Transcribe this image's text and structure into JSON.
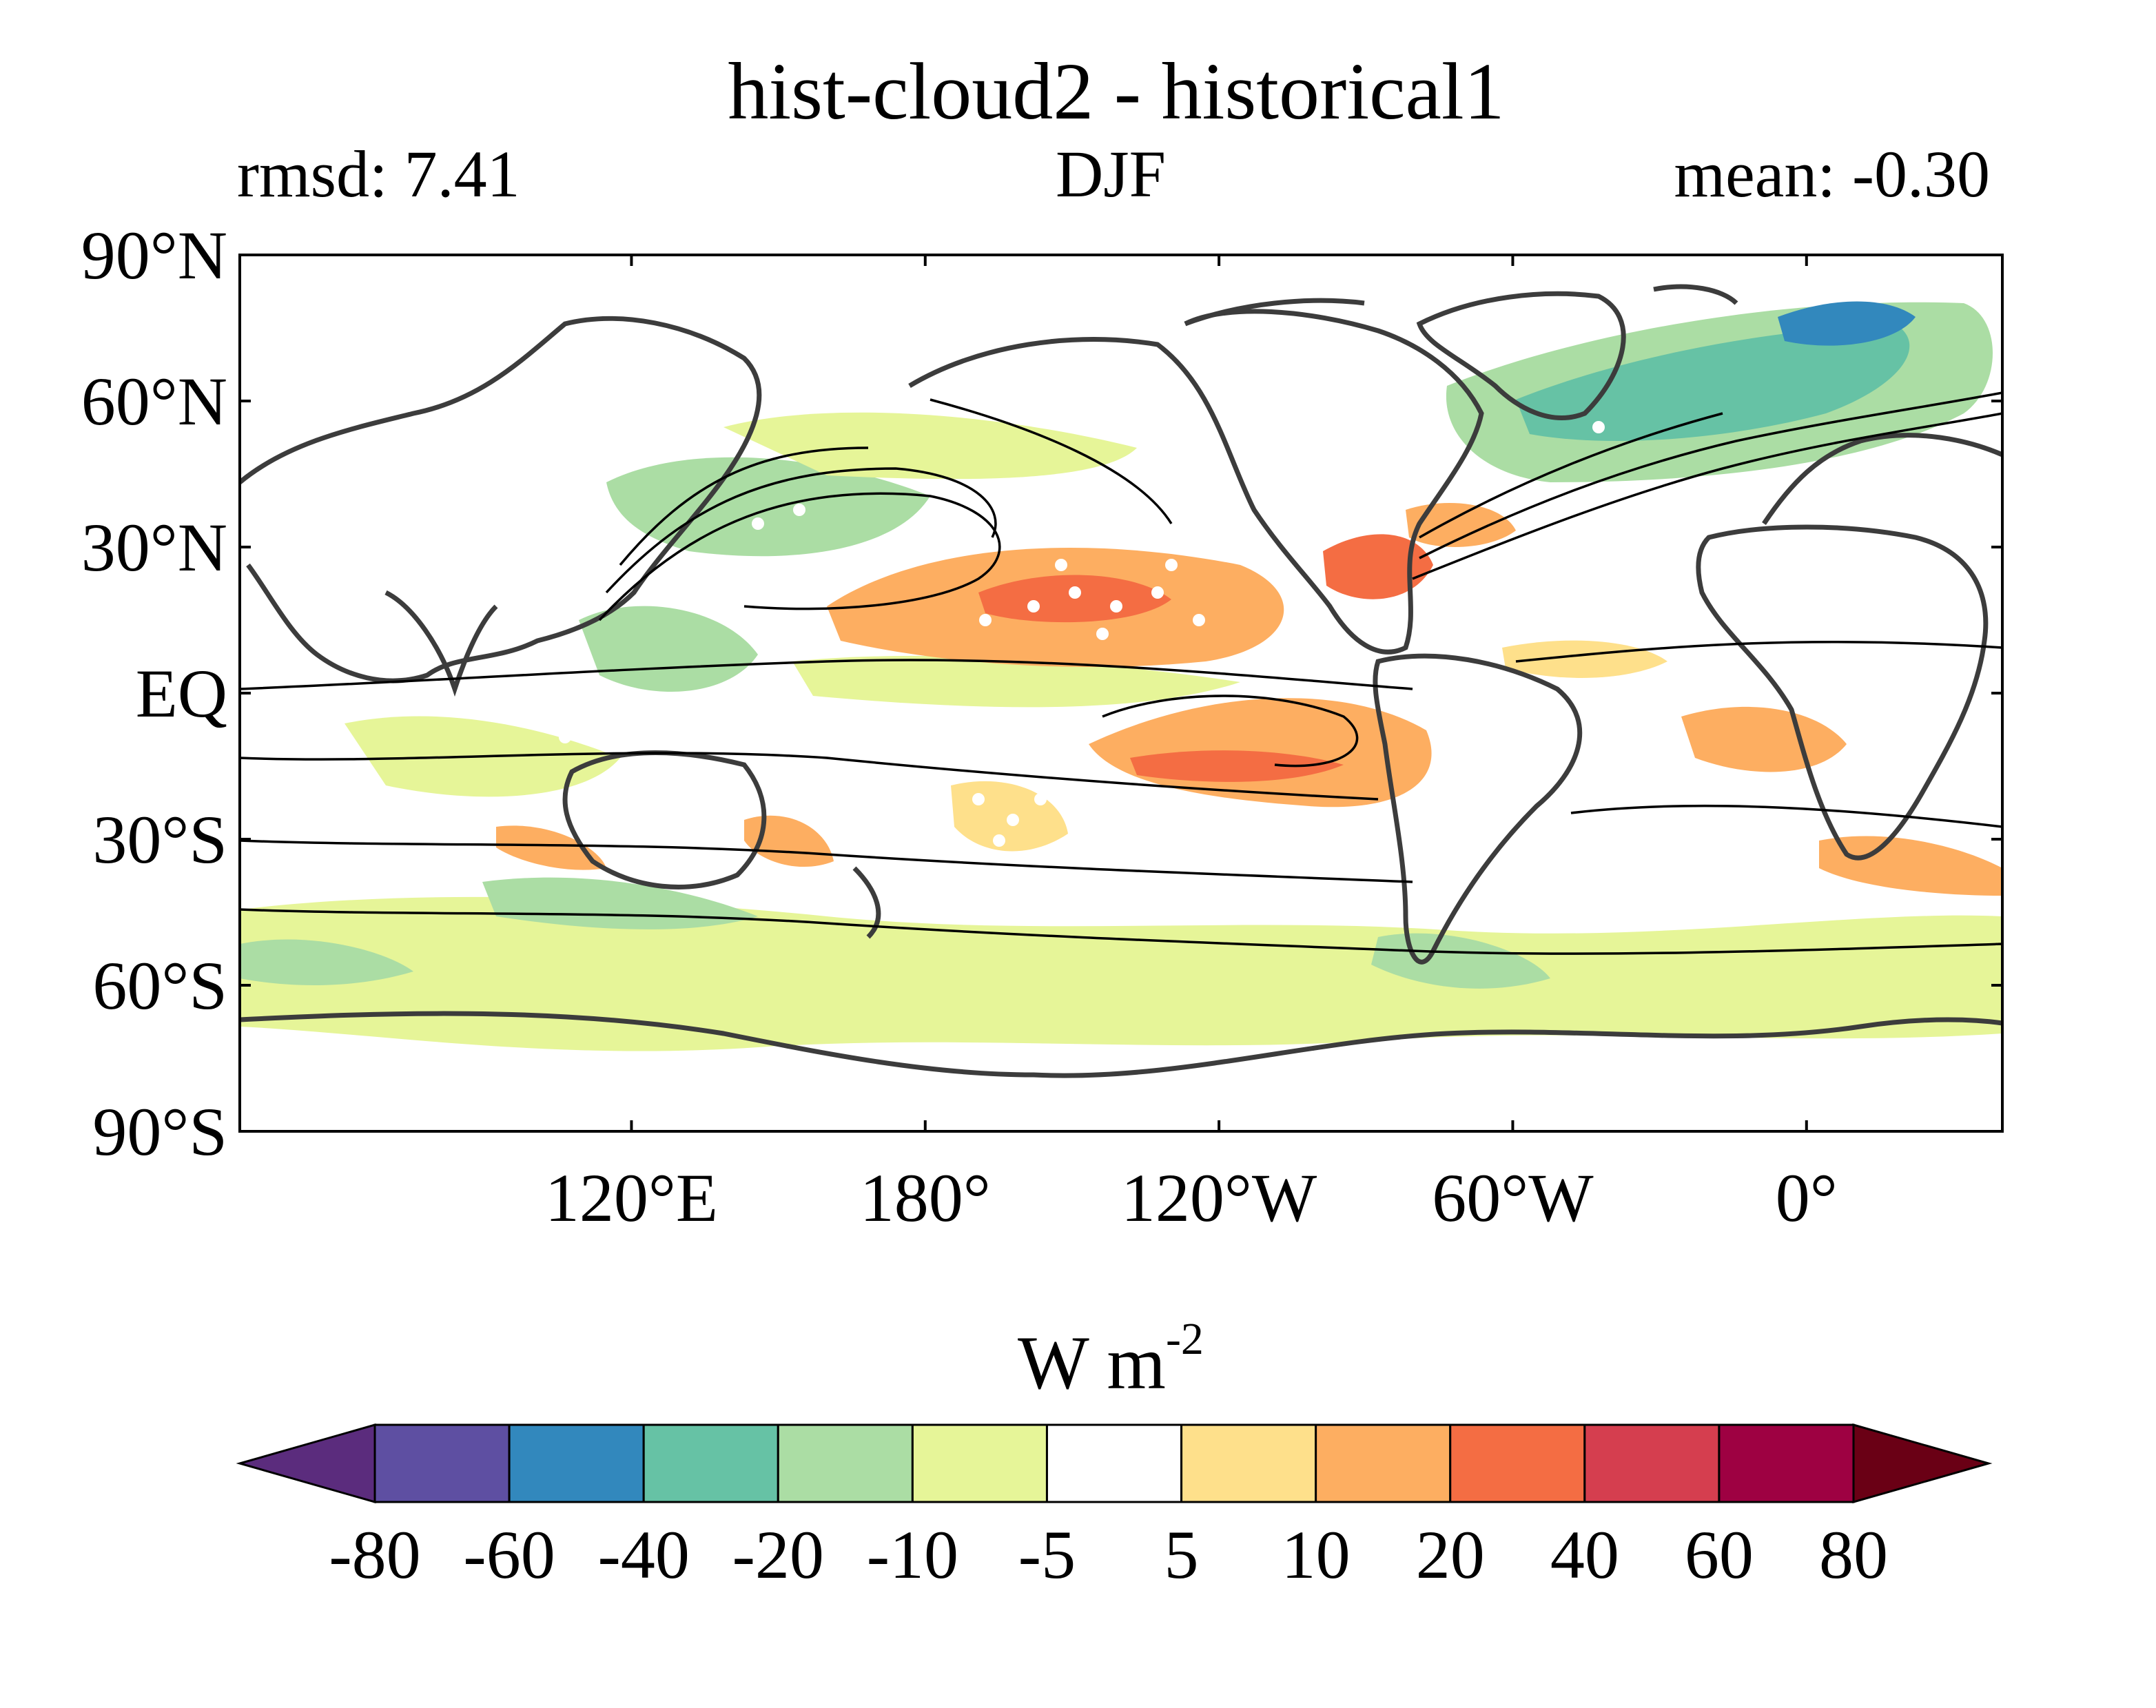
{
  "title": "hist-cloud2 - historical1",
  "subtitle_left": "rmsd: 7.41",
  "subtitle_center": "DJF",
  "subtitle_right": "mean: -0.30",
  "map": {
    "lat_ticks": [
      {
        "value": 90,
        "label": "90°N"
      },
      {
        "value": 60,
        "label": "60°N"
      },
      {
        "value": 30,
        "label": "30°N"
      },
      {
        "value": 0,
        "label": "EQ"
      },
      {
        "value": -30,
        "label": "30°S"
      },
      {
        "value": -60,
        "label": "60°S"
      },
      {
        "value": -90,
        "label": "90°S"
      }
    ],
    "lon_ticks": [
      {
        "value": 120,
        "label": "120°E"
      },
      {
        "value": 180,
        "label": "180°"
      },
      {
        "value": 240,
        "label": "120°W"
      },
      {
        "value": 300,
        "label": "60°W"
      },
      {
        "value": 360,
        "label": "0°"
      }
    ],
    "lon_range": [
      40,
      400
    ],
    "lat_range": [
      -90,
      90
    ]
  },
  "colorbar": {
    "unit_base": "W m",
    "unit_exp": "-2",
    "levels": [
      "-80",
      "-60",
      "-40",
      "-20",
      "-10",
      "-5",
      "5",
      "10",
      "20",
      "40",
      "60",
      "80"
    ],
    "colors": [
      "#5b2c7d",
      "#5e4fa2",
      "#3288bd",
      "#66c2a5",
      "#abdda4",
      "#e6f598",
      "#ffffff",
      "#fee08b",
      "#fdae61",
      "#f46d43",
      "#d53e4f",
      "#9e0142",
      "#6a0015"
    ]
  }
}
